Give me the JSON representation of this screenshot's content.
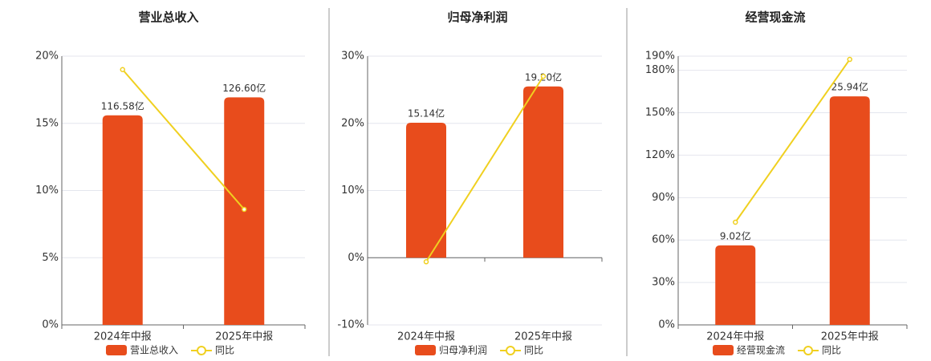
{
  "chart_data": [
    {
      "type": "combo",
      "title": "营业总收入",
      "categories": [
        "2024年中报",
        "2025年中报"
      ],
      "ylim": [
        0,
        20
      ],
      "yticks": [
        {
          "value": 0,
          "label": "0%"
        },
        {
          "value": 5,
          "label": "5%"
        },
        {
          "value": 10,
          "label": "10%"
        },
        {
          "value": 15,
          "label": "15%"
        },
        {
          "value": 20,
          "label": "20%"
        }
      ],
      "y2lim": [
        0,
        149.5
      ],
      "grid": true,
      "series": [
        {
          "name": "营业总收入",
          "type": "bar",
          "axis": "y2",
          "color": "#e84c1c",
          "values": [
            116.58,
            126.6
          ],
          "value_labels": [
            "116.58亿",
            "126.60亿"
          ]
        },
        {
          "name": "同比",
          "type": "line",
          "color": "#f0d020",
          "values": [
            19.0,
            8.6
          ]
        }
      ]
    },
    {
      "type": "combo",
      "title": "归母净利润",
      "categories": [
        "2024年中报",
        "2025年中报"
      ],
      "ylim": [
        -10,
        30
      ],
      "yticks": [
        {
          "value": -10,
          "label": "-10%"
        },
        {
          "value": 0,
          "label": "0%"
        },
        {
          "value": 10,
          "label": "10%"
        },
        {
          "value": 20,
          "label": "20%"
        },
        {
          "value": 30,
          "label": "30%"
        }
      ],
      "y2lim": [
        -7.53,
        22.6
      ],
      "grid": true,
      "series": [
        {
          "name": "归母净利润",
          "type": "bar",
          "axis": "y2",
          "color": "#e84c1c",
          "values": [
            15.14,
            19.2
          ],
          "value_labels": [
            "15.14亿",
            "19.20亿"
          ]
        },
        {
          "name": "同比",
          "type": "line",
          "color": "#f0d020",
          "values": [
            -0.6,
            27.0
          ]
        }
      ]
    },
    {
      "type": "combo",
      "title": "经营现金流",
      "categories": [
        "2024年中报",
        "2025年中报"
      ],
      "ylim": [
        0,
        190
      ],
      "yticks": [
        {
          "value": 0,
          "label": "0%"
        },
        {
          "value": 30,
          "label": "30%"
        },
        {
          "value": 60,
          "label": "60%"
        },
        {
          "value": 90,
          "label": "90%"
        },
        {
          "value": 120,
          "label": "120%"
        },
        {
          "value": 150,
          "label": "150%"
        },
        {
          "value": 180,
          "label": "180%"
        },
        {
          "value": 190,
          "label": "190%"
        }
      ],
      "y2lim": [
        0,
        30.5
      ],
      "grid": true,
      "series": [
        {
          "name": "经营现金流",
          "type": "bar",
          "axis": "y2",
          "color": "#e84c1c",
          "values": [
            9.02,
            25.94
          ],
          "value_labels": [
            "9.02亿",
            "25.94亿"
          ]
        },
        {
          "name": "同比",
          "type": "line",
          "color": "#f0d020",
          "values": [
            72.6,
            187.7
          ]
        }
      ]
    }
  ]
}
